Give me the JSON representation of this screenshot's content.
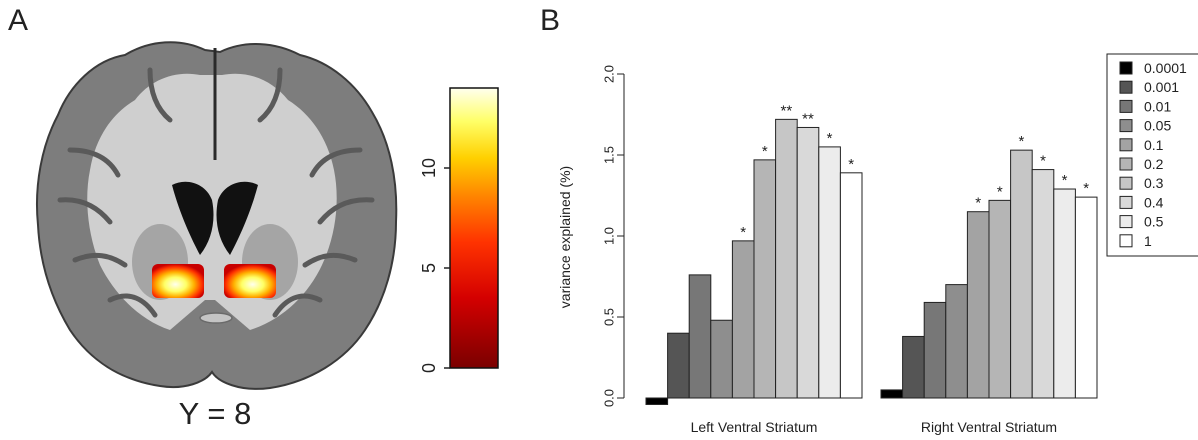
{
  "panel_a": {
    "letter": "A",
    "slice_label": "Y = 8",
    "colorbar": {
      "ticks": [
        0,
        5,
        10
      ],
      "max": 14,
      "colors": [
        "#7a0000",
        "#c80000",
        "#ff3300",
        "#ff8800",
        "#ffd000",
        "#ffff66",
        "#ffffee"
      ]
    }
  },
  "panel_b": {
    "letter": "B"
  },
  "chart_data": {
    "type": "bar",
    "ylabel": "variance explained (%)",
    "ylim": [
      0,
      2.0
    ],
    "yticks": [
      "0.0",
      "0.5",
      "1.0",
      "1.5",
      "2.0"
    ],
    "yticks_values": [
      0,
      0.5,
      1.0,
      1.5,
      2.0
    ],
    "legend_placement": "top-right",
    "legend": [
      "0.0001",
      "0.001",
      "0.01",
      "0.05",
      "0.1",
      "0.2",
      "0.3",
      "0.4",
      "0.5",
      "1"
    ],
    "colors": [
      "#000000",
      "#555555",
      "#777777",
      "#8e8e8e",
      "#a3a3a3",
      "#b5b5b5",
      "#c6c6c6",
      "#d9d9d9",
      "#ececec",
      "#ffffff"
    ],
    "groups": [
      {
        "label": "Left Ventral Striatum",
        "values": [
          -0.04,
          0.4,
          0.76,
          0.48,
          0.97,
          1.47,
          1.72,
          1.67,
          1.55,
          1.39
        ],
        "marks": [
          "",
          "",
          "",
          "",
          "*",
          "*",
          "**",
          "**",
          "*",
          "*"
        ]
      },
      {
        "label": "Right Ventral Striatum",
        "values": [
          0.05,
          0.38,
          0.59,
          0.7,
          1.15,
          1.22,
          1.53,
          1.41,
          1.29,
          1.24
        ],
        "marks": [
          "",
          "",
          "",
          "",
          "*",
          "*",
          "*",
          "*",
          "*",
          "*"
        ]
      }
    ]
  }
}
